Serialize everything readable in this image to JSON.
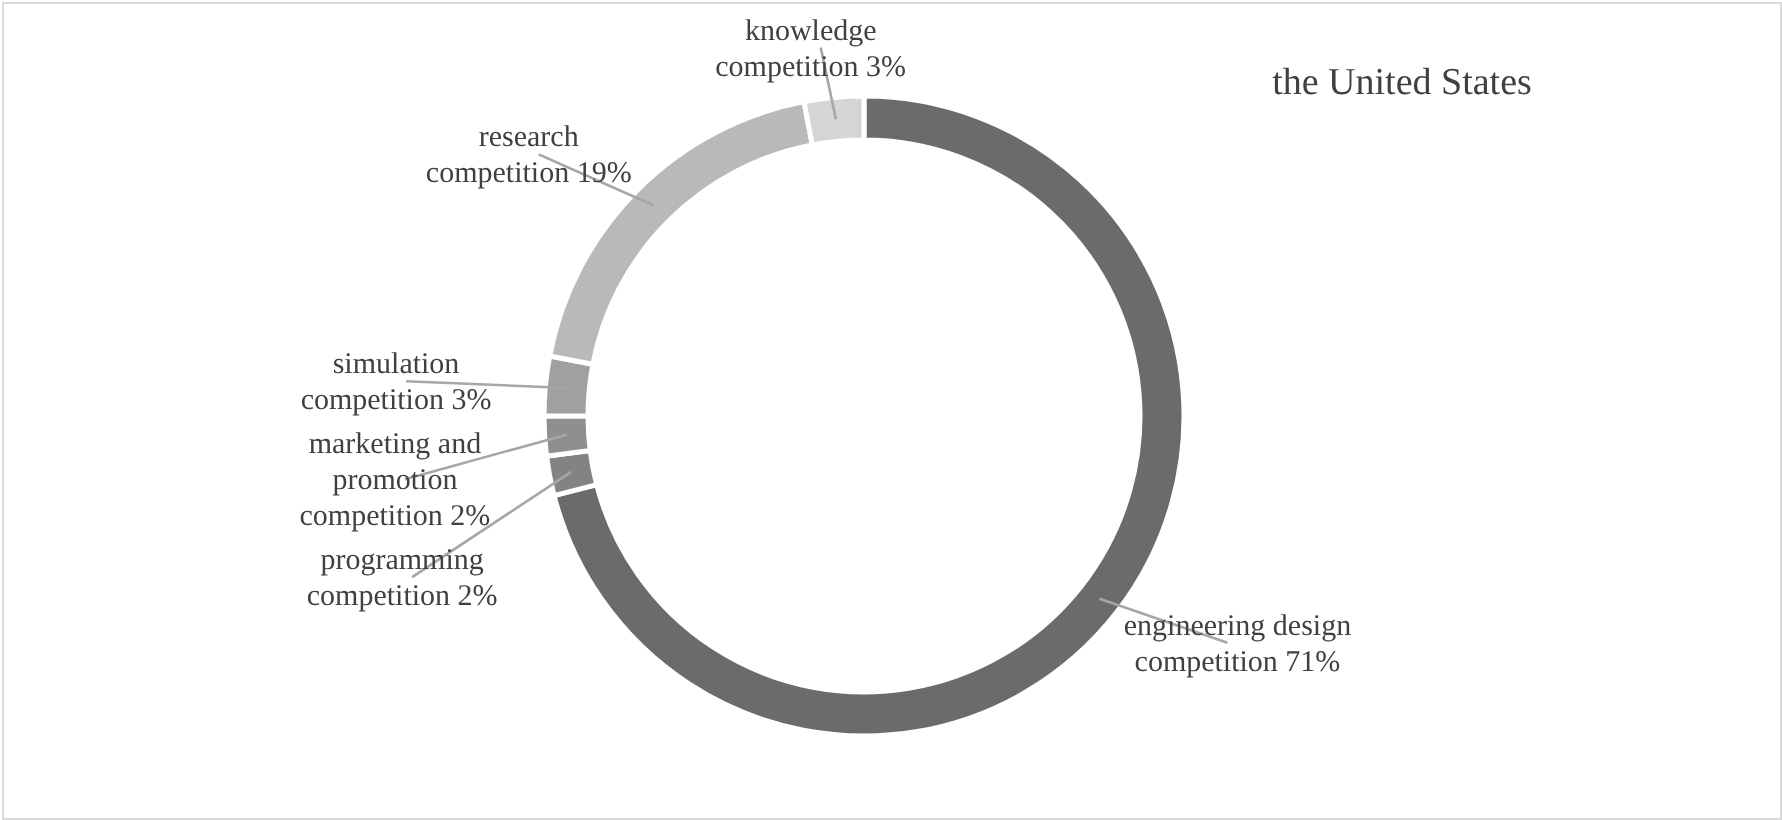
{
  "chart_data": {
    "type": "donut",
    "title": "the United States",
    "categories": [
      "engineering design competition",
      "programming competition",
      "marketing and promotion competition",
      "simulation competition",
      "research competition",
      "knowledge competition"
    ],
    "values": [
      71,
      2,
      2,
      3,
      19,
      3
    ],
    "value_labels": [
      "71%",
      "2%",
      "2%",
      "3%",
      "19%",
      "3%"
    ],
    "colors": [
      "#6b6b6b",
      "#838383",
      "#8f8f8f",
      "#a0a0a0",
      "#b9b9b9",
      "#d5d5d5"
    ]
  }
}
